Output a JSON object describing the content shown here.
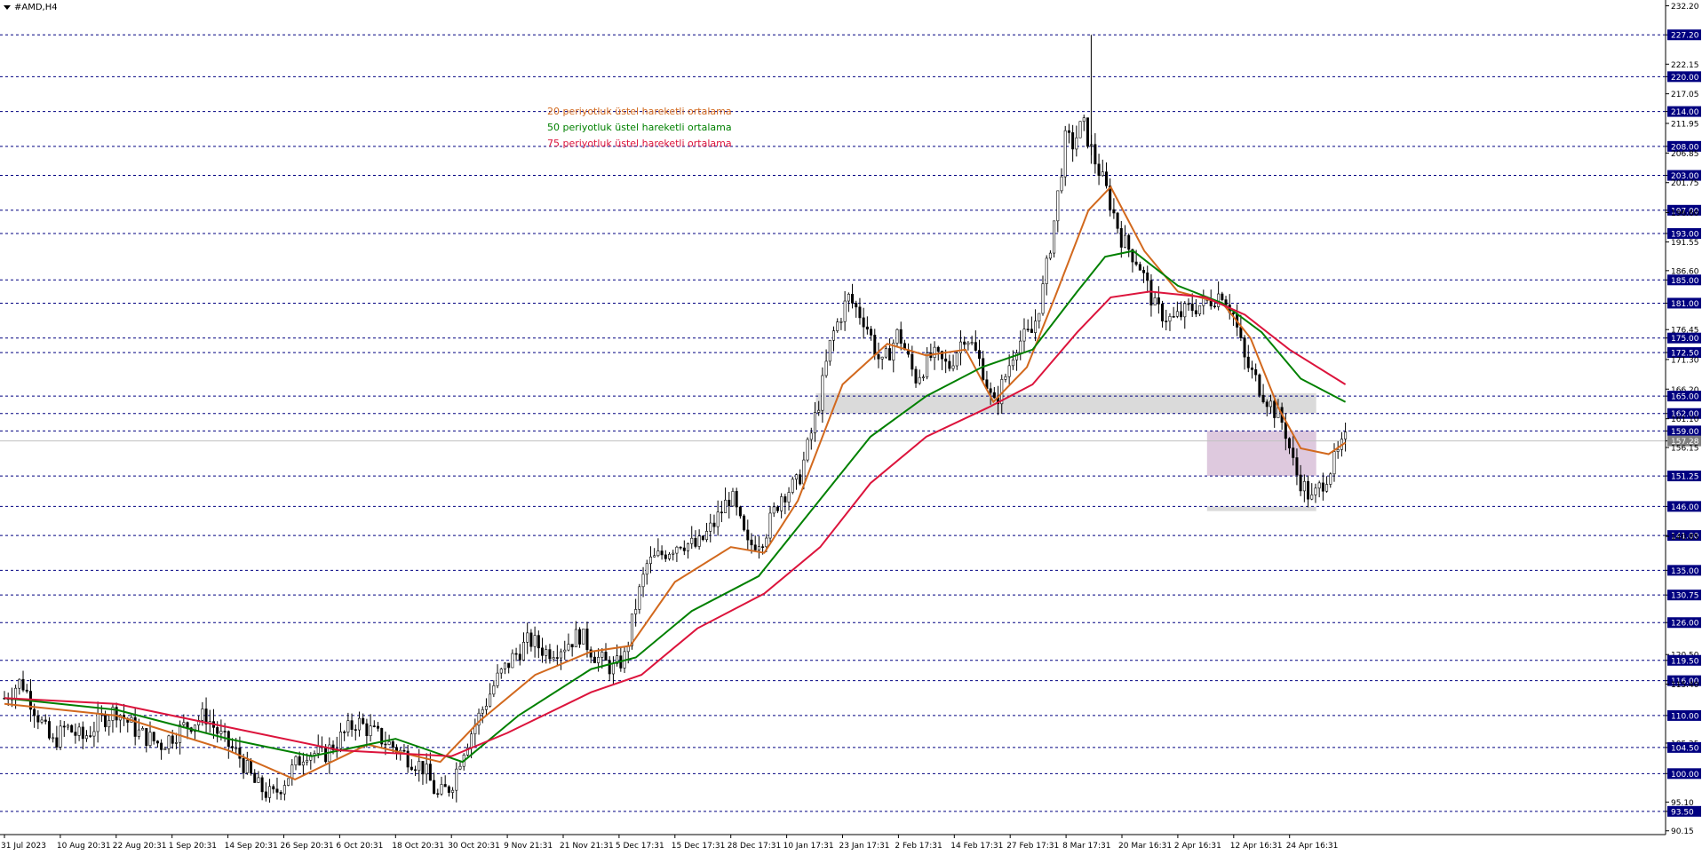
{
  "window": {
    "title": "#AMD,H4"
  },
  "colors": {
    "ema20": "#d2691e",
    "ema50": "#008000",
    "ema75": "#dc143c",
    "candle": "#000000",
    "level_line": "#000080",
    "label_bg": "#000080",
    "zone_gray": "#d3d3d3",
    "zone_purple": "#d8bfd8",
    "current_line": "#c0c0c0"
  },
  "legend": [
    {
      "key": "ema20",
      "label": "20 periyotluk üstel hareketli ortalama"
    },
    {
      "key": "ema50",
      "label": "50 periyotluk üstel hareketli ortalama"
    },
    {
      "key": "ema75",
      "label": "75 periyotluk üstel hareketli ortalama"
    }
  ],
  "chart_data": {
    "type": "candlestick",
    "symbol": "#AMD",
    "timeframe": "H4",
    "ylim": [
      89.5,
      233.2
    ],
    "y_ticks": [
      "232.20",
      "227.20",
      "222.15",
      "220.00",
      "217.05",
      "214.00",
      "211.95",
      "208.00",
      "206.85",
      "203.00",
      "201.75",
      "197.00",
      "196.60",
      "193.00",
      "191.55",
      "186.60",
      "185.00",
      "181.00",
      "176.45",
      "175.00",
      "172.50",
      "171.30",
      "166.20",
      "165.00",
      "162.00",
      "161.10",
      "159.00",
      "157.28",
      "156.15",
      "151.25",
      "146.00",
      "141.00",
      "140.85",
      "135.00",
      "130.75",
      "126.00",
      "120.50",
      "119.50",
      "116.00",
      "115.40",
      "110.00",
      "105.25",
      "104.50",
      "100.00",
      "95.10",
      "93.50",
      "90.15"
    ],
    "x_labels": [
      "31 Jul 2023",
      "10 Aug 20:31",
      "22 Aug 20:31",
      "1 Sep 20:31",
      "14 Sep 20:31",
      "26 Sep 20:31",
      "6 Oct 20:31",
      "18 Oct 20:31",
      "30 Oct 20:31",
      "9 Nov 21:31",
      "21 Nov 21:31",
      "5 Dec 17:31",
      "15 Dec 17:31",
      "28 Dec 17:31",
      "10 Jan 17:31",
      "23 Jan 17:31",
      "2 Feb 17:31",
      "14 Feb 17:31",
      "27 Feb 17:31",
      "8 Mar 17:31",
      "20 Mar 16:31",
      "2 Apr 16:31",
      "12 Apr 16:31",
      "24 Apr 16:31"
    ],
    "levels": [
      227.2,
      220.0,
      214.0,
      208.0,
      203.0,
      197.0,
      193.0,
      185.0,
      181.0,
      175.0,
      172.5,
      165.0,
      162.0,
      159.0,
      151.25,
      146.0,
      141.0,
      135.0,
      130.75,
      126.0,
      119.5,
      116.0,
      110.0,
      104.5,
      100.0,
      93.5
    ],
    "current_price": 157.28,
    "zones": [
      {
        "color_key": "zone_gray",
        "from_label": "23 Jan 17:31",
        "to_label": "24 Apr 16:31",
        "y0": 162.0,
        "y1": 165.5
      },
      {
        "color_key": "zone_purple",
        "from_label": "12 Apr 16:31",
        "to_label": "24 Apr 16:31",
        "y0": 151.25,
        "y1": 159.0
      },
      {
        "color_key": "zone_gray",
        "from_label": "12 Apr 16:31",
        "to_label": "24 Apr 16:31",
        "y0": 145.2,
        "y1": 146.0
      }
    ],
    "close_path": [
      [
        0,
        113
      ],
      [
        0.3,
        116
      ],
      [
        0.6,
        110
      ],
      [
        0.85,
        105
      ],
      [
        1.1,
        108
      ],
      [
        1.4,
        106
      ],
      [
        1.7,
        109
      ],
      [
        2.0,
        111
      ],
      [
        2.4,
        107
      ],
      [
        2.8,
        105
      ],
      [
        3.2,
        108
      ],
      [
        3.6,
        110
      ],
      [
        3.9,
        106
      ],
      [
        4.2,
        103
      ],
      [
        4.5,
        98
      ],
      [
        4.8,
        96
      ],
      [
        5.1,
        100
      ],
      [
        5.4,
        104
      ],
      [
        5.7,
        103
      ],
      [
        6.0,
        106
      ],
      [
        6.3,
        109
      ],
      [
        6.6,
        107
      ],
      [
        6.9,
        105
      ],
      [
        7.2,
        103
      ],
      [
        7.5,
        101
      ],
      [
        7.75,
        96
      ],
      [
        8.0,
        98
      ],
      [
        8.2,
        104
      ],
      [
        8.5,
        110
      ],
      [
        8.8,
        116
      ],
      [
        9.1,
        120
      ],
      [
        9.4,
        123
      ],
      [
        9.7,
        121
      ],
      [
        10.0,
        122
      ],
      [
        10.3,
        124
      ],
      [
        10.6,
        120
      ],
      [
        10.9,
        118
      ],
      [
        11.1,
        120
      ],
      [
        11.3,
        129
      ],
      [
        11.5,
        136
      ],
      [
        11.8,
        138
      ],
      [
        12.1,
        140
      ],
      [
        12.4,
        139
      ],
      [
        12.7,
        143
      ],
      [
        13.0,
        148
      ],
      [
        13.3,
        139
      ],
      [
        13.6,
        141
      ],
      [
        13.9,
        148
      ],
      [
        14.2,
        150
      ],
      [
        14.4,
        157
      ],
      [
        14.6,
        165
      ],
      [
        14.8,
        175
      ],
      [
        15.1,
        182
      ],
      [
        15.4,
        178
      ],
      [
        15.7,
        170
      ],
      [
        16.0,
        176
      ],
      [
        16.3,
        168
      ],
      [
        16.6,
        172
      ],
      [
        16.9,
        170
      ],
      [
        17.2,
        176
      ],
      [
        17.5,
        170
      ],
      [
        17.7,
        163
      ],
      [
        17.9,
        168
      ],
      [
        18.1,
        174
      ],
      [
        18.4,
        176
      ],
      [
        18.6,
        184
      ],
      [
        18.8,
        196
      ],
      [
        19.0,
        210
      ],
      [
        19.1,
        208
      ],
      [
        19.3,
        212
      ],
      [
        19.5,
        206
      ],
      [
        19.7,
        201
      ],
      [
        20.0,
        192
      ],
      [
        20.3,
        188
      ],
      [
        20.6,
        180
      ],
      [
        20.9,
        178
      ],
      [
        21.2,
        180
      ],
      [
        21.5,
        181
      ],
      [
        21.8,
        183
      ],
      [
        22.0,
        179
      ],
      [
        22.2,
        171
      ],
      [
        22.5,
        166
      ],
      [
        22.7,
        163
      ],
      [
        22.9,
        160
      ],
      [
        23.1,
        152
      ],
      [
        23.4,
        147
      ],
      [
        23.7,
        152
      ],
      [
        24.0,
        157.3
      ]
    ],
    "ema_anchors": {
      "ema20": [
        [
          0,
          112
        ],
        [
          2,
          110
        ],
        [
          4,
          104
        ],
        [
          5.2,
          99
        ],
        [
          6.5,
          105
        ],
        [
          7.8,
          102
        ],
        [
          8.5,
          109
        ],
        [
          9.5,
          117
        ],
        [
          10.5,
          121
        ],
        [
          11.2,
          122
        ],
        [
          12.0,
          133
        ],
        [
          13.0,
          139
        ],
        [
          13.6,
          138
        ],
        [
          14.2,
          147
        ],
        [
          15.0,
          167
        ],
        [
          15.8,
          174
        ],
        [
          16.5,
          172
        ],
        [
          17.2,
          173
        ],
        [
          17.7,
          164
        ],
        [
          18.3,
          170
        ],
        [
          18.8,
          182
        ],
        [
          19.4,
          197
        ],
        [
          19.8,
          201
        ],
        [
          20.4,
          190
        ],
        [
          21.0,
          183
        ],
        [
          21.8,
          181
        ],
        [
          22.3,
          175
        ],
        [
          22.8,
          163
        ],
        [
          23.2,
          156
        ],
        [
          23.7,
          155
        ],
        [
          24.0,
          157
        ]
      ],
      "ema50": [
        [
          0,
          113
        ],
        [
          2,
          111
        ],
        [
          4,
          106
        ],
        [
          5.5,
          103
        ],
        [
          7.0,
          106
        ],
        [
          8.2,
          102
        ],
        [
          9.2,
          110
        ],
        [
          10.5,
          118
        ],
        [
          11.3,
          120
        ],
        [
          12.3,
          128
        ],
        [
          13.5,
          134
        ],
        [
          14.5,
          146
        ],
        [
          15.5,
          158
        ],
        [
          16.5,
          165
        ],
        [
          17.5,
          170
        ],
        [
          18.4,
          173
        ],
        [
          19.2,
          183
        ],
        [
          19.7,
          189
        ],
        [
          20.2,
          190
        ],
        [
          21.0,
          184
        ],
        [
          21.8,
          181
        ],
        [
          22.5,
          176
        ],
        [
          23.2,
          168
        ],
        [
          24.0,
          164
        ]
      ],
      "ema75": [
        [
          0,
          113
        ],
        [
          2,
          112
        ],
        [
          4,
          108
        ],
        [
          6.0,
          104
        ],
        [
          8.0,
          103
        ],
        [
          9.0,
          107
        ],
        [
          10.5,
          114
        ],
        [
          11.4,
          117
        ],
        [
          12.4,
          125
        ],
        [
          13.6,
          131
        ],
        [
          14.6,
          139
        ],
        [
          15.5,
          150
        ],
        [
          16.5,
          158
        ],
        [
          17.6,
          163
        ],
        [
          18.4,
          167
        ],
        [
          19.2,
          176
        ],
        [
          19.8,
          182
        ],
        [
          20.5,
          183
        ],
        [
          21.5,
          182
        ],
        [
          22.2,
          179
        ],
        [
          23.0,
          173
        ],
        [
          24.0,
          167
        ]
      ]
    }
  }
}
